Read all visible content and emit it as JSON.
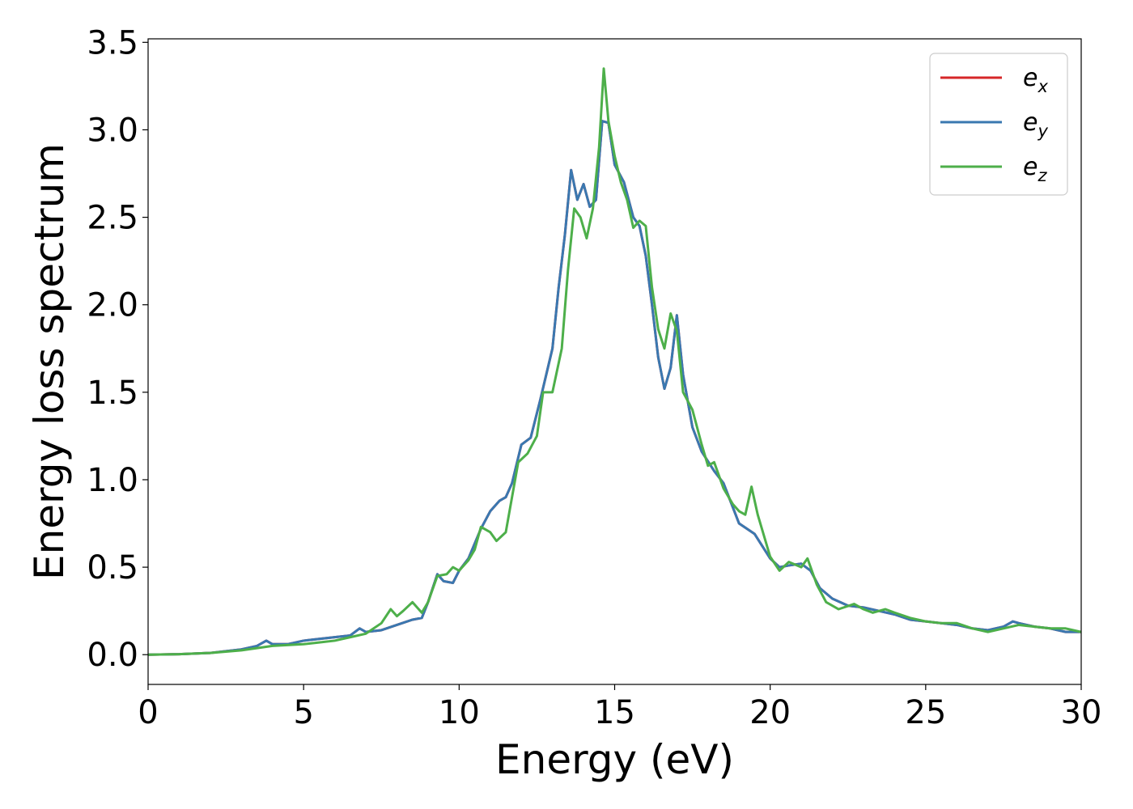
{
  "chart_data": {
    "type": "line",
    "title": "",
    "xlabel": "Energy (eV)",
    "ylabel": "Energy loss spectrum",
    "xlim": [
      0,
      30
    ],
    "ylim": [
      -0.17,
      3.52
    ],
    "xticks": [
      0,
      5,
      10,
      15,
      20,
      25,
      30
    ],
    "yticks": [
      0.0,
      0.5,
      1.0,
      1.5,
      2.0,
      2.5,
      3.0,
      3.5
    ],
    "xtick_labels": [
      "0",
      "5",
      "10",
      "15",
      "20",
      "25",
      "30"
    ],
    "ytick_labels": [
      "0.0",
      "0.5",
      "1.0",
      "1.5",
      "2.0",
      "2.5",
      "3.0",
      "3.5"
    ],
    "grid": false,
    "legend_position": "top-right",
    "series": [
      {
        "name": "e_x",
        "legend_base": "e",
        "legend_sub": "x",
        "color": "#d62728",
        "points": [
          [
            0,
            0
          ],
          [
            1,
            0.003
          ],
          [
            2,
            0.01
          ],
          [
            3,
            0.03
          ],
          [
            3.5,
            0.05
          ],
          [
            3.8,
            0.08
          ],
          [
            4,
            0.06
          ],
          [
            4.5,
            0.06
          ],
          [
            5,
            0.08
          ],
          [
            5.5,
            0.09
          ],
          [
            6,
            0.1
          ],
          [
            6.5,
            0.11
          ],
          [
            6.8,
            0.15
          ],
          [
            7,
            0.13
          ],
          [
            7.5,
            0.14
          ],
          [
            8,
            0.17
          ],
          [
            8.5,
            0.2
          ],
          [
            8.8,
            0.21
          ],
          [
            9,
            0.3
          ],
          [
            9.3,
            0.46
          ],
          [
            9.5,
            0.42
          ],
          [
            9.8,
            0.41
          ],
          [
            10,
            0.48
          ],
          [
            10.3,
            0.55
          ],
          [
            10.7,
            0.72
          ],
          [
            11,
            0.82
          ],
          [
            11.3,
            0.88
          ],
          [
            11.5,
            0.9
          ],
          [
            11.7,
            0.98
          ],
          [
            12,
            1.2
          ],
          [
            12.3,
            1.24
          ],
          [
            12.6,
            1.45
          ],
          [
            13,
            1.75
          ],
          [
            13.2,
            2.1
          ],
          [
            13.4,
            2.4
          ],
          [
            13.6,
            2.77
          ],
          [
            13.8,
            2.6
          ],
          [
            14,
            2.69
          ],
          [
            14.2,
            2.56
          ],
          [
            14.4,
            2.6
          ],
          [
            14.6,
            3.05
          ],
          [
            14.8,
            3.04
          ],
          [
            15,
            2.8
          ],
          [
            15.3,
            2.7
          ],
          [
            15.6,
            2.5
          ],
          [
            15.8,
            2.45
          ],
          [
            16,
            2.28
          ],
          [
            16.2,
            2.0
          ],
          [
            16.4,
            1.7
          ],
          [
            16.6,
            1.52
          ],
          [
            16.8,
            1.64
          ],
          [
            17,
            1.94
          ],
          [
            17.2,
            1.6
          ],
          [
            17.5,
            1.3
          ],
          [
            17.8,
            1.16
          ],
          [
            18.2,
            1.05
          ],
          [
            18.5,
            0.98
          ],
          [
            19,
            0.75
          ],
          [
            19.5,
            0.69
          ],
          [
            20,
            0.55
          ],
          [
            20.3,
            0.5
          ],
          [
            20.6,
            0.51
          ],
          [
            21,
            0.52
          ],
          [
            21.3,
            0.48
          ],
          [
            21.6,
            0.38
          ],
          [
            22,
            0.32
          ],
          [
            22.5,
            0.28
          ],
          [
            23,
            0.27
          ],
          [
            23.5,
            0.25
          ],
          [
            24,
            0.23
          ],
          [
            24.5,
            0.2
          ],
          [
            25,
            0.19
          ],
          [
            25.5,
            0.18
          ],
          [
            26,
            0.17
          ],
          [
            26.5,
            0.15
          ],
          [
            27,
            0.14
          ],
          [
            27.5,
            0.16
          ],
          [
            27.8,
            0.19
          ],
          [
            28,
            0.18
          ],
          [
            28.5,
            0.16
          ],
          [
            29,
            0.15
          ],
          [
            29.5,
            0.13
          ],
          [
            30,
            0.13
          ]
        ]
      },
      {
        "name": "e_y",
        "legend_base": "e",
        "legend_sub": "y",
        "color": "#3a78b0",
        "points": [
          [
            0,
            0
          ],
          [
            1,
            0.003
          ],
          [
            2,
            0.01
          ],
          [
            3,
            0.03
          ],
          [
            3.5,
            0.05
          ],
          [
            3.8,
            0.08
          ],
          [
            4,
            0.06
          ],
          [
            4.5,
            0.06
          ],
          [
            5,
            0.08
          ],
          [
            5.5,
            0.09
          ],
          [
            6,
            0.1
          ],
          [
            6.5,
            0.11
          ],
          [
            6.8,
            0.15
          ],
          [
            7,
            0.13
          ],
          [
            7.5,
            0.14
          ],
          [
            8,
            0.17
          ],
          [
            8.5,
            0.2
          ],
          [
            8.8,
            0.21
          ],
          [
            9,
            0.3
          ],
          [
            9.3,
            0.46
          ],
          [
            9.5,
            0.42
          ],
          [
            9.8,
            0.41
          ],
          [
            10,
            0.48
          ],
          [
            10.3,
            0.55
          ],
          [
            10.7,
            0.72
          ],
          [
            11,
            0.82
          ],
          [
            11.3,
            0.88
          ],
          [
            11.5,
            0.9
          ],
          [
            11.7,
            0.98
          ],
          [
            12,
            1.2
          ],
          [
            12.3,
            1.24
          ],
          [
            12.6,
            1.45
          ],
          [
            13,
            1.75
          ],
          [
            13.2,
            2.1
          ],
          [
            13.4,
            2.4
          ],
          [
            13.6,
            2.77
          ],
          [
            13.8,
            2.6
          ],
          [
            14,
            2.69
          ],
          [
            14.2,
            2.56
          ],
          [
            14.4,
            2.6
          ],
          [
            14.6,
            3.05
          ],
          [
            14.8,
            3.04
          ],
          [
            15,
            2.8
          ],
          [
            15.3,
            2.7
          ],
          [
            15.6,
            2.5
          ],
          [
            15.8,
            2.45
          ],
          [
            16,
            2.28
          ],
          [
            16.2,
            2.0
          ],
          [
            16.4,
            1.7
          ],
          [
            16.6,
            1.52
          ],
          [
            16.8,
            1.64
          ],
          [
            17,
            1.94
          ],
          [
            17.2,
            1.6
          ],
          [
            17.5,
            1.3
          ],
          [
            17.8,
            1.16
          ],
          [
            18.2,
            1.05
          ],
          [
            18.5,
            0.98
          ],
          [
            19,
            0.75
          ],
          [
            19.5,
            0.69
          ],
          [
            20,
            0.55
          ],
          [
            20.3,
            0.5
          ],
          [
            20.6,
            0.51
          ],
          [
            21,
            0.52
          ],
          [
            21.3,
            0.48
          ],
          [
            21.6,
            0.38
          ],
          [
            22,
            0.32
          ],
          [
            22.5,
            0.28
          ],
          [
            23,
            0.27
          ],
          [
            23.5,
            0.25
          ],
          [
            24,
            0.23
          ],
          [
            24.5,
            0.2
          ],
          [
            25,
            0.19
          ],
          [
            25.5,
            0.18
          ],
          [
            26,
            0.17
          ],
          [
            26.5,
            0.15
          ],
          [
            27,
            0.14
          ],
          [
            27.5,
            0.16
          ],
          [
            27.8,
            0.19
          ],
          [
            28,
            0.18
          ],
          [
            28.5,
            0.16
          ],
          [
            29,
            0.15
          ],
          [
            29.5,
            0.13
          ],
          [
            30,
            0.13
          ]
        ]
      },
      {
        "name": "e_z",
        "legend_base": "e",
        "legend_sub": "z",
        "color": "#4daf4a",
        "points": [
          [
            0,
            0
          ],
          [
            1,
            0.003
          ],
          [
            2,
            0.01
          ],
          [
            3,
            0.025
          ],
          [
            4,
            0.05
          ],
          [
            5,
            0.06
          ],
          [
            5.5,
            0.07
          ],
          [
            6,
            0.08
          ],
          [
            6.5,
            0.1
          ],
          [
            7,
            0.12
          ],
          [
            7.5,
            0.18
          ],
          [
            7.8,
            0.26
          ],
          [
            8,
            0.22
          ],
          [
            8.2,
            0.25
          ],
          [
            8.5,
            0.3
          ],
          [
            8.8,
            0.24
          ],
          [
            9,
            0.3
          ],
          [
            9.3,
            0.45
          ],
          [
            9.6,
            0.46
          ],
          [
            9.8,
            0.5
          ],
          [
            10,
            0.48
          ],
          [
            10.3,
            0.54
          ],
          [
            10.5,
            0.6
          ],
          [
            10.7,
            0.73
          ],
          [
            11,
            0.7
          ],
          [
            11.2,
            0.65
          ],
          [
            11.5,
            0.7
          ],
          [
            11.7,
            0.9
          ],
          [
            11.9,
            1.1
          ],
          [
            12.2,
            1.15
          ],
          [
            12.5,
            1.25
          ],
          [
            12.7,
            1.5
          ],
          [
            13,
            1.5
          ],
          [
            13.3,
            1.75
          ],
          [
            13.5,
            2.2
          ],
          [
            13.7,
            2.55
          ],
          [
            13.9,
            2.5
          ],
          [
            14.1,
            2.38
          ],
          [
            14.3,
            2.55
          ],
          [
            14.5,
            2.9
          ],
          [
            14.65,
            3.35
          ],
          [
            14.8,
            3.05
          ],
          [
            15,
            2.85
          ],
          [
            15.2,
            2.7
          ],
          [
            15.4,
            2.6
          ],
          [
            15.6,
            2.44
          ],
          [
            15.8,
            2.48
          ],
          [
            16,
            2.45
          ],
          [
            16.2,
            2.1
          ],
          [
            16.4,
            1.86
          ],
          [
            16.6,
            1.75
          ],
          [
            16.8,
            1.95
          ],
          [
            17,
            1.85
          ],
          [
            17.2,
            1.5
          ],
          [
            17.5,
            1.4
          ],
          [
            17.8,
            1.2
          ],
          [
            18.0,
            1.08
          ],
          [
            18.2,
            1.1
          ],
          [
            18.5,
            0.95
          ],
          [
            18.8,
            0.86
          ],
          [
            19,
            0.82
          ],
          [
            19.2,
            0.8
          ],
          [
            19.4,
            0.96
          ],
          [
            19.6,
            0.8
          ],
          [
            20,
            0.56
          ],
          [
            20.3,
            0.48
          ],
          [
            20.6,
            0.53
          ],
          [
            21,
            0.5
          ],
          [
            21.2,
            0.55
          ],
          [
            21.5,
            0.4
          ],
          [
            21.8,
            0.3
          ],
          [
            22.2,
            0.26
          ],
          [
            22.7,
            0.29
          ],
          [
            23,
            0.26
          ],
          [
            23.3,
            0.24
          ],
          [
            23.7,
            0.26
          ],
          [
            24,
            0.24
          ],
          [
            24.5,
            0.21
          ],
          [
            25,
            0.19
          ],
          [
            25.5,
            0.18
          ],
          [
            26,
            0.18
          ],
          [
            26.5,
            0.15
          ],
          [
            27,
            0.13
          ],
          [
            27.5,
            0.15
          ],
          [
            28,
            0.17
          ],
          [
            28.5,
            0.16
          ],
          [
            29,
            0.15
          ],
          [
            29.5,
            0.15
          ],
          [
            30,
            0.13
          ]
        ]
      }
    ]
  }
}
